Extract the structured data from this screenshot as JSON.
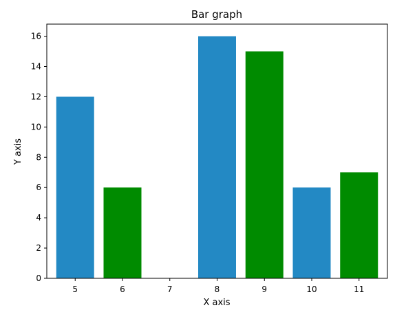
{
  "chart_data": {
    "type": "bar",
    "title": "Bar graph",
    "xlabel": "X axis",
    "ylabel": "Y axis",
    "x": [
      5,
      6,
      7,
      8,
      9,
      10,
      11
    ],
    "values": [
      12,
      6,
      0,
      16,
      15,
      6,
      7
    ],
    "bar_colors": [
      "#2389c4",
      "#008b00",
      "#2389c4",
      "#2389c4",
      "#008b00",
      "#2389c4",
      "#008b00"
    ],
    "xticks": [
      "5",
      "6",
      "7",
      "8",
      "9",
      "10",
      "11"
    ],
    "yticks": [
      "0",
      "2",
      "4",
      "6",
      "8",
      "10",
      "12",
      "14",
      "16"
    ],
    "ylim": [
      0,
      16.8
    ],
    "xlim": [
      4.4,
      11.6
    ],
    "grid": false,
    "legend": false
  }
}
